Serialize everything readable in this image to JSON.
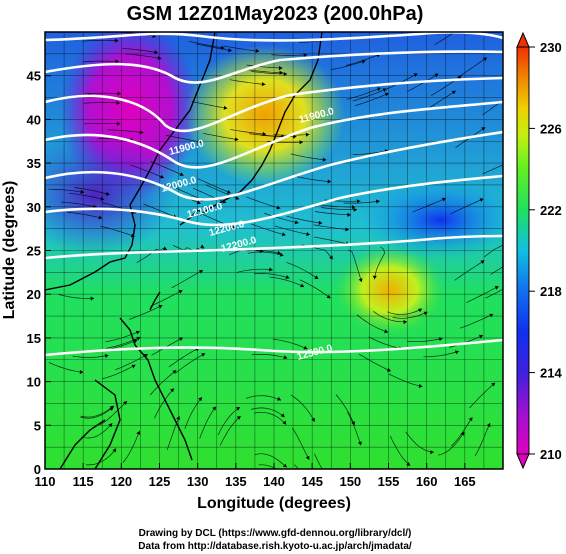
{
  "title": "GSM 12Z01May2023 (200.0hPa)",
  "map": {
    "lon_range": [
      110,
      170
    ],
    "lat_range": [
      0,
      50
    ],
    "xlabel": "Longitude (degrees)",
    "ylabel": "Latitude  (degrees)",
    "x_ticks": [
      "110",
      "115",
      "120",
      "125",
      "130",
      "135",
      "140",
      "145",
      "150",
      "155",
      "160",
      "165"
    ],
    "y_ticks": [
      "0",
      "5",
      "10",
      "15",
      "20",
      "25",
      "30",
      "35",
      "40",
      "45"
    ],
    "shading_variable": "temperature-like field (colour)",
    "contour_labels": [
      "11900.0",
      "12000.0",
      "12100.0",
      "12200.0",
      "12300.0",
      "12400.0",
      "12500.0"
    ]
  },
  "colorbar": {
    "ticks": [
      "210",
      "214",
      "218",
      "222",
      "226",
      "230"
    ],
    "range": [
      210,
      230
    ],
    "colors": [
      "#e000c0",
      "#6020e0",
      "#1030f0",
      "#10a0f0",
      "#20e0c0",
      "#20e040",
      "#a0f020",
      "#f0f000",
      "#f0a000",
      "#f03000"
    ]
  },
  "credits": {
    "line1": "Drawing by DCL (https://www.gfd-dennou.org/library/dcl/)",
    "line2": "Data from http://database.rish.kyoto-u.ac.jp/arch/jmadata/"
  }
}
